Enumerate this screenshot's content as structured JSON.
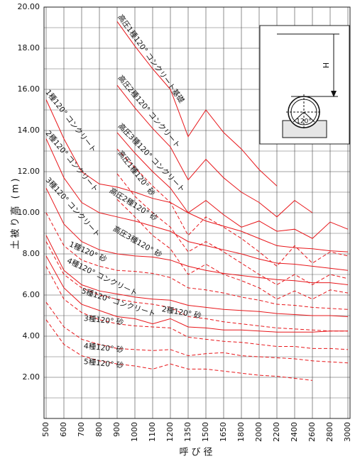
{
  "chart_data": {
    "type": "line",
    "xlabel": "呼び径",
    "ylabel": "土被り高 (m)",
    "categories": [
      "500",
      "600",
      "700",
      "800",
      "900",
      "1000",
      "1100",
      "1200",
      "1350",
      "1500",
      "1650",
      "1800",
      "2000",
      "2200",
      "2400",
      "2600",
      "2800",
      "3000"
    ],
    "ylim": [
      0,
      20
    ],
    "yticks": [
      {
        "value": 2,
        "label": "2.00"
      },
      {
        "value": 4,
        "label": "4.00"
      },
      {
        "value": 6,
        "label": "6.00"
      },
      {
        "value": 8,
        "label": "8.00"
      },
      {
        "value": 10,
        "label": "10.00"
      },
      {
        "value": 12,
        "label": "12.00"
      },
      {
        "value": 14,
        "label": "14.00"
      },
      {
        "value": 16,
        "label": "16.00"
      },
      {
        "value": 18,
        "label": "18.00"
      },
      {
        "value": 20,
        "label": "20.00"
      }
    ],
    "grid": true,
    "series": [
      {
        "name": "高圧1種120° コンクリート基礎",
        "color": "#e8171b",
        "line_style": "solid",
        "values": [
          null,
          null,
          null,
          null,
          19.3,
          18.1,
          17.0,
          16.0,
          13.7,
          15.0,
          13.9,
          13.1,
          12.1,
          11.3,
          null,
          null,
          null,
          null
        ]
      },
      {
        "name": "高圧2種120° コンクリート",
        "color": "#e8171b",
        "line_style": "solid",
        "values": [
          null,
          null,
          null,
          null,
          16.2,
          15.1,
          14.1,
          13.2,
          11.6,
          12.6,
          11.7,
          11.0,
          10.5,
          9.8,
          10.6,
          10.0,
          null,
          null
        ]
      },
      {
        "name": "高圧3種120° コンクリート",
        "color": "#e8171b",
        "line_style": "solid",
        "values": [
          null,
          null,
          null,
          null,
          13.9,
          12.9,
          12.0,
          11.2,
          10.0,
          10.6,
          9.9,
          9.3,
          9.6,
          9.1,
          9.2,
          8.75,
          9.55,
          9.2
        ]
      },
      {
        "name": "1種120° コンクリート",
        "color": "#e8171b",
        "line_style": "solid",
        "values": [
          15.5,
          13.6,
          12.0,
          11.4,
          11.25,
          11.0,
          10.7,
          10.5,
          10.0,
          9.6,
          9.35,
          9.1,
          8.75,
          8.4,
          8.3,
          8.25,
          8.15,
          8.1
        ]
      },
      {
        "name": "2種120° コンクリート",
        "color": "#e8171b",
        "line_style": "solid",
        "values": [
          13.6,
          11.7,
          10.5,
          10.0,
          9.8,
          9.6,
          9.35,
          9.1,
          8.6,
          8.4,
          8.2,
          8.0,
          7.75,
          7.55,
          7.5,
          7.4,
          7.3,
          7.2
        ]
      },
      {
        "name": "3種120° コンクリート",
        "color": "#e8171b",
        "line_style": "solid",
        "values": [
          11.2,
          9.45,
          8.6,
          8.2,
          8.0,
          7.9,
          7.85,
          7.7,
          7.4,
          7.2,
          7.05,
          6.95,
          6.85,
          6.75,
          6.7,
          6.6,
          6.6,
          6.5
        ]
      },
      {
        "name": "4種120° コンクリート",
        "color": "#e8171b",
        "line_style": "solid",
        "values": [
          8.9,
          7.2,
          6.5,
          6.2,
          6.05,
          5.9,
          5.8,
          5.75,
          5.5,
          5.4,
          5.3,
          5.25,
          5.2,
          5.1,
          5.05,
          5.0,
          5.0,
          4.95
        ]
      },
      {
        "name": "5種120° コンクリート",
        "color": "#e8171b",
        "line_style": "solid",
        "values": [
          7.9,
          6.35,
          5.55,
          5.25,
          4.95,
          4.85,
          4.6,
          4.85,
          4.45,
          4.4,
          4.3,
          4.3,
          4.25,
          4.2,
          4.2,
          4.2,
          4.25,
          4.25
        ]
      },
      {
        "name": "高圧1種120° 砂",
        "color": "#e8171b",
        "line_style": "dashed",
        "values": [
          null,
          null,
          null,
          null,
          13.1,
          12.2,
          11.3,
          10.5,
          8.9,
          9.8,
          9.3,
          8.75,
          8.1,
          7.4,
          8.4,
          7.55,
          8.1,
          7.9
        ]
      },
      {
        "name": "高圧2種120° 砂",
        "color": "#e8171b",
        "line_style": "dashed",
        "values": [
          null,
          null,
          null,
          null,
          11.9,
          10.8,
          10.0,
          9.3,
          8.1,
          8.6,
          8.1,
          7.55,
          7.0,
          6.5,
          7.0,
          6.5,
          7.0,
          6.8
        ]
      },
      {
        "name": "高圧3種120° 砂",
        "color": "#e8171b",
        "line_style": "dashed",
        "values": [
          null,
          null,
          null,
          null,
          10.65,
          9.8,
          8.9,
          8.25,
          7.0,
          7.5,
          7.0,
          6.7,
          6.35,
          5.8,
          6.2,
          5.8,
          6.25,
          6.1
        ]
      },
      {
        "name": "1種120° 砂",
        "color": "#e8171b",
        "line_style": "dashed",
        "values": [
          10.0,
          8.4,
          7.7,
          7.4,
          7.2,
          7.15,
          7.05,
          6.85,
          6.35,
          6.25,
          6.1,
          5.9,
          5.75,
          5.55,
          5.5,
          5.4,
          5.35,
          5.3
        ]
      },
      {
        "name": "2種120° 砂",
        "color": "#e8171b",
        "line_style": "dashed",
        "values": [
          8.6,
          7.0,
          6.35,
          6.0,
          5.8,
          5.65,
          5.55,
          5.4,
          4.95,
          4.85,
          4.7,
          4.6,
          4.5,
          4.4,
          4.35,
          4.3,
          4.25,
          4.25
        ]
      },
      {
        "name": "3種120° 砂",
        "color": "#e8171b",
        "line_style": "dashed",
        "values": [
          7.4,
          5.8,
          5.15,
          4.8,
          4.6,
          4.5,
          4.45,
          4.4,
          3.95,
          3.85,
          3.75,
          3.7,
          3.6,
          3.5,
          3.5,
          3.4,
          3.4,
          3.35
        ]
      },
      {
        "name": "4種120° 砂",
        "color": "#e8171b",
        "line_style": "dashed",
        "values": [
          5.65,
          4.45,
          3.85,
          3.6,
          3.4,
          3.35,
          3.3,
          3.35,
          3.05,
          3.15,
          3.2,
          3.05,
          3.0,
          2.95,
          2.9,
          2.8,
          2.75,
          2.7
        ]
      },
      {
        "name": "5種120° 砂",
        "color": "#e8171b",
        "line_style": "dashed",
        "values": [
          4.8,
          3.6,
          3.05,
          2.8,
          2.65,
          2.55,
          2.4,
          2.65,
          2.4,
          2.4,
          2.3,
          2.2,
          2.1,
          2.05,
          1.95,
          1.85,
          null,
          null
        ]
      }
    ],
    "inset": {
      "h_label": "H",
      "angle_label": "120°"
    }
  }
}
